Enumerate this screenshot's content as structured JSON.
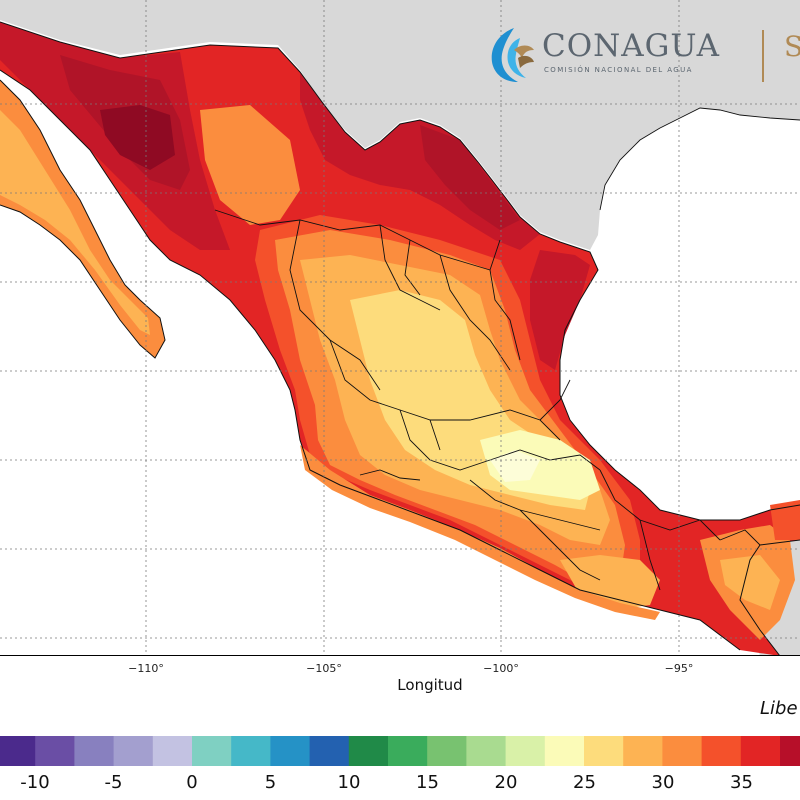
{
  "map": {
    "xlabel": "Longitud",
    "x_ticks": [
      "−110°",
      "−105°",
      "−100°",
      "−95°"
    ],
    "credit": "Libe",
    "logo": {
      "title": "CONAGUA",
      "subtitle": "COMISIÓN NACIONAL DEL AGUA",
      "partial": "S"
    }
  },
  "colorbar": {
    "labels": [
      "-10",
      "-5",
      "0",
      "5",
      "10",
      "15",
      "20",
      "25",
      "30",
      "35"
    ],
    "colors": [
      "#4b2a8c",
      "#6a4ea5",
      "#8880bf",
      "#a39fcf",
      "#c3c2e2",
      "#7fd0c2",
      "#45b8c8",
      "#2592c6",
      "#2361b0",
      "#208a48",
      "#3aac5c",
      "#78c270",
      "#a9db90",
      "#d9f1a8",
      "#fbfbb8",
      "#fddc7c",
      "#fdb353",
      "#fb8d3e",
      "#f4512b",
      "#e22525",
      "#b70f29"
    ]
  },
  "legend_colors": {
    "land_outside": "#d8d8d8",
    "water": "#ffffff",
    "grid": "#7a7a7a",
    "temp_38": "#8f0a23",
    "temp_36": "#c51829",
    "temp_34": "#e22525",
    "temp_32": "#f4512b",
    "temp_30": "#fb8d3e",
    "temp_28": "#fdb353",
    "temp_26": "#fddc7c",
    "temp_24": "#fbfbb8"
  }
}
